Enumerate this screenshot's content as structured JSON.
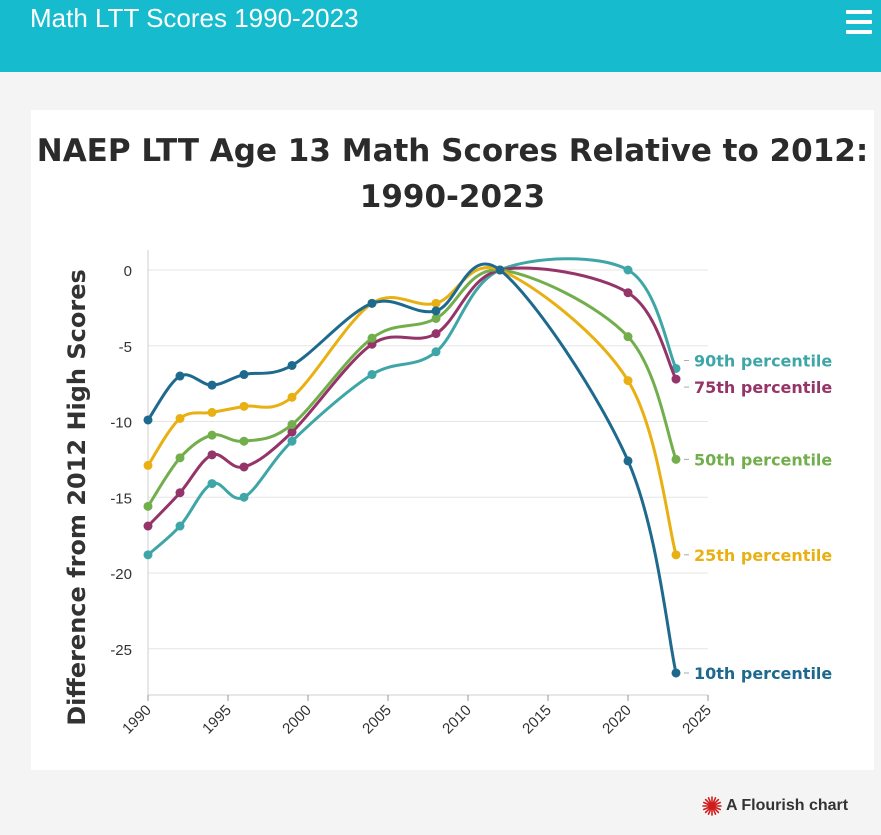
{
  "header": {
    "title": "Math LTT Scores 1990-2023",
    "menu_icon": "hamburger-menu-icon"
  },
  "chart_data": {
    "type": "line",
    "title_lines": [
      "NAEP LTT Age 13 Math Scores Relative to 2012:",
      "1990-2023"
    ],
    "xlabel": "",
    "ylabel": "Difference from 2012 High Scores",
    "xlim": [
      1990,
      2025
    ],
    "ylim": [
      -28,
      1
    ],
    "x_ticks": [
      1990,
      1995,
      2000,
      2005,
      2010,
      2015,
      2020,
      2025
    ],
    "y_ticks": [
      0,
      -5,
      -10,
      -15,
      -20,
      -25
    ],
    "grid": true,
    "x": [
      1990,
      1992,
      1994,
      1996,
      1999,
      2004,
      2008,
      2012,
      2020,
      2023
    ],
    "series": [
      {
        "name": "90th percentile",
        "color": "#3fa6a8",
        "values": [
          -18.8,
          -16.9,
          -14.1,
          -15.0,
          -11.3,
          -6.9,
          -5.4,
          0,
          0,
          -6.5
        ]
      },
      {
        "name": "75th percentile",
        "color": "#953468",
        "values": [
          -16.9,
          -14.7,
          -12.2,
          -13.0,
          -10.7,
          -4.9,
          -4.2,
          0,
          -1.5,
          -7.2
        ]
      },
      {
        "name": "50th percentile",
        "color": "#72ae4b",
        "values": [
          -15.6,
          -12.4,
          -10.9,
          -11.3,
          -10.2,
          -4.5,
          -3.2,
          0,
          -4.4,
          -12.5
        ]
      },
      {
        "name": "25th percentile",
        "color": "#e8b012",
        "values": [
          -12.9,
          -9.8,
          -9.4,
          -9.0,
          -8.4,
          -2.2,
          -2.2,
          0,
          -7.3,
          -18.8
        ]
      },
      {
        "name": "10th percentile",
        "color": "#1e6a8e",
        "values": [
          -9.9,
          -7.0,
          -7.6,
          -6.9,
          -6.3,
          -2.2,
          -2.7,
          0,
          -12.6,
          -26.6
        ]
      }
    ]
  },
  "attribution": {
    "text": "A Flourish chart",
    "icon": "flourish-logo-icon"
  }
}
